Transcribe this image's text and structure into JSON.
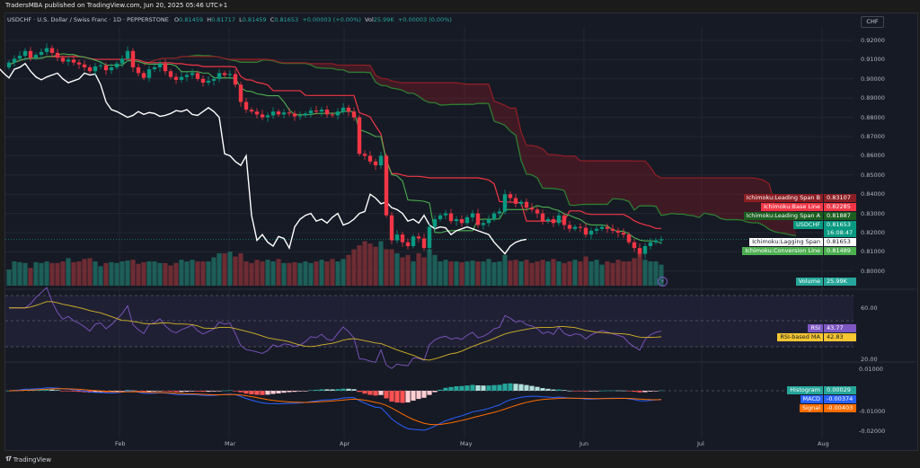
{
  "header": {
    "published": "TradersMBA published on TradingView.com, Jun 20, 2025 05:46 UTC+1",
    "symbol": "USDCHF · U.S. Dollar / Swiss Franc · 1D · PEPPERSTONE",
    "o_label": "O",
    "o": "0.81459",
    "h_label": "H",
    "h": "0.81717",
    "l_label": "L",
    "l": "0.81459",
    "c_label": "C",
    "c": "0.81653",
    "change": "+0.00003 (+0.00%)",
    "vol_label": "Vol",
    "vol": "25.99K",
    "vol_change": "+0.00003 (0.00%)"
  },
  "currency": "CHF",
  "footer": {
    "logo": "TradingView",
    "logo_icon": "tradingview-logo-icon"
  },
  "colors": {
    "up": "#089981",
    "down": "#f23645",
    "conversion": "#4caf50",
    "base": "#f23645",
    "span_a": "#2e7d32",
    "span_b": "#8b1e24",
    "lagging": "#ffffff",
    "rsi": "#7e57c2",
    "rsi_ma": "#d4b425",
    "macd": "#2962ff",
    "signal": "#ff6d00"
  },
  "labels": {
    "span_b": {
      "name": "Ichimoku:Leading Span B",
      "value": "0.83107"
    },
    "base": {
      "name": "Ichimoku:Base Line",
      "value": "0.82285"
    },
    "span_a": {
      "name": "Ichimoku:Leading Span A",
      "value": "0.81887"
    },
    "price": {
      "name": "USDCHF",
      "value": "0.81653",
      "countdown": "16:08:47"
    },
    "lagging": {
      "name": "Ichimoku:Lagging Span",
      "value": "0.81653"
    },
    "conversion": {
      "name": "Ichimoku:Conversion Line",
      "value": "0.81489"
    },
    "volume": {
      "name": "Volume",
      "value": "25.99K"
    },
    "rsi": {
      "name": "RSI",
      "value": "43.77"
    },
    "rsi_ma": {
      "name": "RSI-based MA",
      "value": "42.83"
    },
    "histogram": {
      "name": "Histogram",
      "value": "0.00029"
    },
    "macd": {
      "name": "MACD",
      "value": "-0.00374"
    },
    "signal": {
      "name": "Signal",
      "value": "-0.00403"
    }
  },
  "chart_data": {
    "type": "candlestick",
    "title": "",
    "x_ticks": [
      "Feb",
      "Mar",
      "Apr",
      "May",
      "Jun",
      "Jul",
      "Aug"
    ],
    "price_ticks": [
      "0.92000",
      "0.91000",
      "0.90000",
      "0.89000",
      "0.88000",
      "0.87000",
      "0.86000",
      "0.85000",
      "0.84000",
      "0.83000",
      "0.82000",
      "0.81000",
      "0.80000"
    ],
    "rsi_ticks": [
      "60.00",
      "20.00"
    ],
    "macd_ticks": [
      "0.01000",
      "-0.01000",
      "-0.02000"
    ],
    "ylim": [
      0.795,
      0.925
    ],
    "grid": true,
    "first_open": 0.906,
    "close": [
      0.9085,
      0.9105,
      0.912,
      0.9145,
      0.911,
      0.9125,
      0.914,
      0.916,
      0.9135,
      0.911,
      0.909,
      0.91,
      0.9085,
      0.9075,
      0.906,
      0.904,
      0.9065,
      0.907,
      0.9045,
      0.906,
      0.908,
      0.9105,
      0.9145,
      0.906,
      0.903,
      0.9005,
      0.905,
      0.906,
      0.908,
      0.904,
      0.901,
      0.8995,
      0.901,
      0.902,
      0.903,
      0.9,
      0.898,
      0.899,
      0.9,
      0.903,
      0.902,
      0.9025,
      0.897,
      0.888,
      0.884,
      0.883,
      0.8815,
      0.88,
      0.881,
      0.883,
      0.8815,
      0.8825,
      0.882,
      0.8805,
      0.881,
      0.882,
      0.8835,
      0.883,
      0.884,
      0.8815,
      0.881,
      0.883,
      0.885,
      0.883,
      0.88,
      0.861,
      0.86,
      0.857,
      0.855,
      0.86,
      0.829,
      0.816,
      0.819,
      0.815,
      0.813,
      0.818,
      0.817,
      0.812,
      0.823,
      0.827,
      0.829,
      0.83,
      0.826,
      0.827,
      0.825,
      0.828,
      0.83,
      0.824,
      0.825,
      0.827,
      0.83,
      0.831,
      0.84,
      0.838,
      0.835,
      0.836,
      0.833,
      0.832,
      0.83,
      0.826,
      0.827,
      0.825,
      0.829,
      0.824,
      0.822,
      0.823,
      0.8225,
      0.819,
      0.821,
      0.822,
      0.823,
      0.822,
      0.821,
      0.82,
      0.819,
      0.815,
      0.812,
      0.809,
      0.813,
      0.815,
      0.816,
      0.81653
    ],
    "volume_k": [
      20,
      30,
      29,
      28,
      22,
      29,
      28,
      30,
      28,
      28,
      30,
      34,
      29,
      30,
      33,
      34,
      30,
      24,
      28,
      29,
      28,
      30,
      31,
      32,
      27,
      29,
      30,
      30,
      28,
      28,
      25,
      28,
      32,
      30,
      32,
      30,
      30,
      30,
      35,
      40,
      40,
      42,
      36,
      40,
      30,
      28,
      32,
      30,
      32,
      30,
      33,
      28,
      28,
      29,
      28,
      30,
      28,
      30,
      32,
      30,
      33,
      30,
      33,
      38,
      45,
      50,
      55,
      52,
      48,
      55,
      45,
      45,
      40,
      35,
      38,
      30,
      40,
      35,
      45,
      38,
      30,
      32,
      30,
      30,
      29,
      30,
      31,
      30,
      30,
      33,
      29,
      30,
      38,
      31,
      32,
      30,
      32,
      28,
      30,
      32,
      30,
      33,
      30,
      28,
      30,
      32,
      30,
      36,
      30,
      32,
      26,
      30,
      28,
      32,
      30,
      30,
      34,
      40,
      32,
      30,
      30,
      25.99
    ]
  }
}
